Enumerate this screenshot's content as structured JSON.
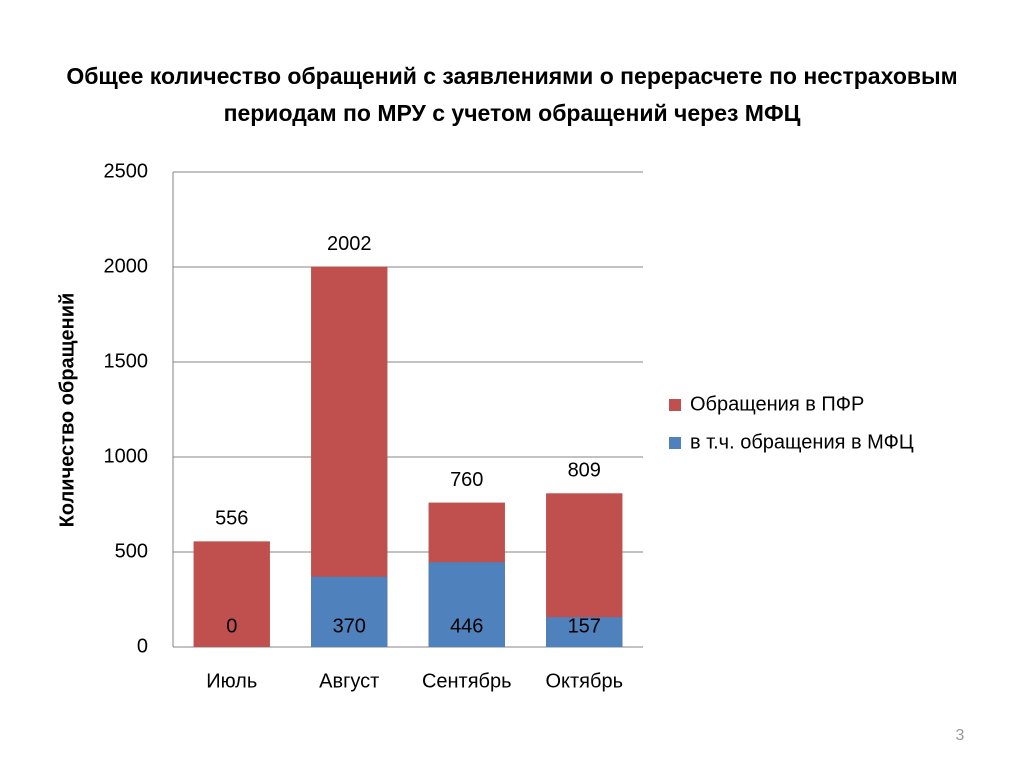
{
  "chart_data": {
    "type": "bar",
    "title": "Общее количество обращений с заявлениями о перерасчете по нестраховым периодам по МРУ с учетом обращений через МФЦ",
    "y_label": "Количество обращений",
    "categories": [
      "Июль",
      "Август",
      "Сентябрь",
      "Октябрь"
    ],
    "series": [
      {
        "name": "Обращения в ПФР",
        "color": "#c0504d",
        "values": [
          556,
          2002,
          760,
          809
        ]
      },
      {
        "name": "в т.ч. обращения в МФЦ",
        "color": "#4f81bd",
        "values": [
          0,
          370,
          446,
          157
        ]
      }
    ],
    "stacked": false,
    "ylim": [
      0,
      2500
    ],
    "yticks": [
      0,
      500,
      1000,
      1500,
      2000,
      2500
    ],
    "grid": true,
    "legend": "right"
  },
  "page_number": "3"
}
